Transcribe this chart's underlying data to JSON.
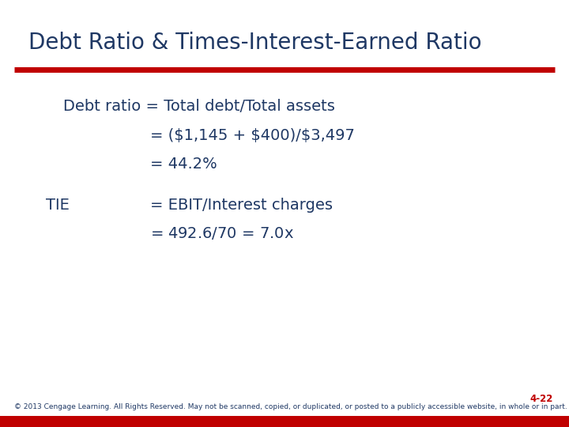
{
  "title": "Debt Ratio & Times-Interest-Earned Ratio",
  "title_color": "#1F3864",
  "title_fontsize": 20,
  "red_line_color": "#C00000",
  "bg_color": "#FFFFFF",
  "body_color": "#1F3864",
  "body_fontsize": 14,
  "line1": "Debt ratio = Total debt/Total assets",
  "line2": "= ($1,145 + $400)/$3,497",
  "line3": "= 44.2%",
  "tie_label": "TIE",
  "tie_line1": "= EBIT/Interest charges",
  "tie_line2": "= $492.6/$70 = 7.0x",
  "slide_number": "4-22",
  "slide_number_color": "#C00000",
  "footer": "© 2013 Cengage Learning. All Rights Reserved. May not be scanned, copied, or duplicated, or posted to a publicly accessible website, in whole or in part.",
  "footer_color": "#1F3864",
  "footer_fontsize": 6.5
}
